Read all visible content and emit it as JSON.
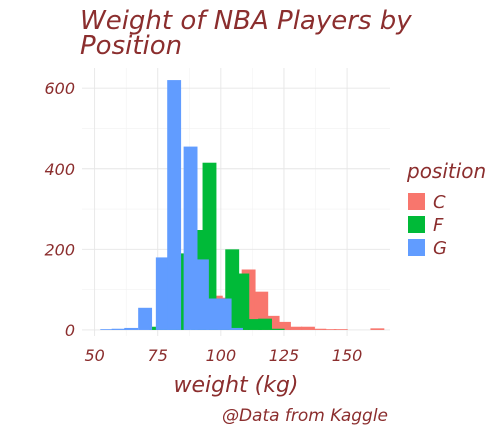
{
  "chart_data": {
    "type": "bar",
    "title_lines": [
      "Weight of NBA Players by",
      "Position"
    ],
    "xlabel": "weight (kg)",
    "ylabel": "",
    "caption": "@Data from Kaggle",
    "xlim": [
      45,
      167
    ],
    "ylim": [
      -15,
      650
    ],
    "x_ticks": [
      50,
      75,
      100,
      125,
      150
    ],
    "y_ticks": [
      0,
      200,
      400,
      600
    ],
    "grid": true,
    "legend": {
      "title": "position",
      "placement": "right"
    },
    "bin_width": 5.5,
    "series": [
      {
        "name": "C",
        "color": "#F8766D",
        "bins": [
          {
            "x": 94,
            "y": 25
          },
          {
            "x": 98,
            "y": 85
          },
          {
            "x": 102.5,
            "y": 80
          },
          {
            "x": 107,
            "y": 5
          },
          {
            "x": 111,
            "y": 150
          },
          {
            "x": 116,
            "y": 95
          },
          {
            "x": 120.5,
            "y": 35
          },
          {
            "x": 125,
            "y": 20
          },
          {
            "x": 129.5,
            "y": 8
          },
          {
            "x": 134.5,
            "y": 8
          },
          {
            "x": 139,
            "y": 3
          },
          {
            "x": 143,
            "y": 2
          },
          {
            "x": 147.5,
            "y": 2
          },
          {
            "x": 162,
            "y": 4
          }
        ]
      },
      {
        "name": "F",
        "color": "#00BA38",
        "bins": [
          {
            "x": 74.5,
            "y": 8
          },
          {
            "x": 80,
            "y": 52
          },
          {
            "x": 85,
            "y": 190
          },
          {
            "x": 91,
            "y": 248
          },
          {
            "x": 95.5,
            "y": 415
          },
          {
            "x": 99.5,
            "y": 75
          },
          {
            "x": 104.5,
            "y": 200
          },
          {
            "x": 108.5,
            "y": 140
          },
          {
            "x": 113.5,
            "y": 27
          },
          {
            "x": 117.5,
            "y": 28
          },
          {
            "x": 122.5,
            "y": 3
          }
        ]
      },
      {
        "name": "G",
        "color": "#619CFF",
        "bins": [
          {
            "x": 55,
            "y": 2
          },
          {
            "x": 59.5,
            "y": 3
          },
          {
            "x": 64.5,
            "y": 5
          },
          {
            "x": 70,
            "y": 55
          },
          {
            "x": 77,
            "y": 180
          },
          {
            "x": 81.5,
            "y": 620
          },
          {
            "x": 88,
            "y": 455
          },
          {
            "x": 92.5,
            "y": 175
          },
          {
            "x": 97,
            "y": 78
          },
          {
            "x": 101.5,
            "y": 78
          },
          {
            "x": 106,
            "y": 5
          }
        ]
      }
    ]
  }
}
